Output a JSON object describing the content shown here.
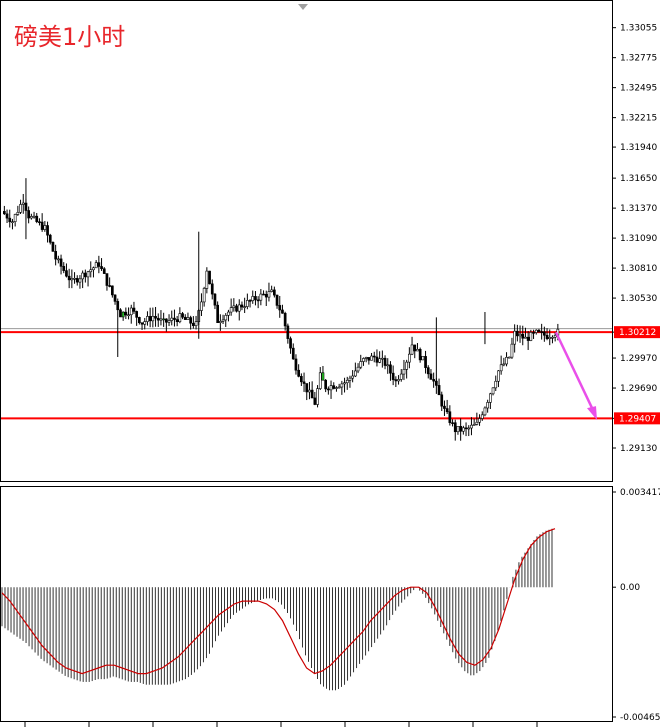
{
  "chart_data": [
    {
      "type": "candlestick",
      "title": "磅美1小时",
      "ylim": [
        1.2885,
        1.3322
      ],
      "y_ticks": [
        "1.33055",
        "1.32775",
        "1.32495",
        "1.32215",
        "1.31940",
        "1.31650",
        "1.31370",
        "1.31090",
        "1.30810",
        "1.30530",
        "1.30212",
        "1.29970",
        "1.29690",
        "1.29407",
        "1.29130"
      ],
      "horizontal_lines": [
        {
          "value": 1.30212,
          "label": "1.30212",
          "color": "#ff0000"
        },
        {
          "value": 1.29407,
          "label": "1.29407",
          "color": "#ff0000"
        }
      ],
      "current_price_line": 1.30245,
      "arrow": {
        "from": [
          1.3021
        ],
        "to": [
          1.2939
        ],
        "color": "#e94fe9"
      },
      "price_path": [
        [
          0,
          1.3134
        ],
        [
          4,
          1.3125
        ],
        [
          8,
          1.3145
        ],
        [
          10,
          1.313
        ],
        [
          16,
          1.3118
        ],
        [
          20,
          1.309
        ],
        [
          26,
          1.3068
        ],
        [
          32,
          1.3078
        ],
        [
          36,
          1.3085
        ],
        [
          40,
          1.3062
        ],
        [
          44,
          1.3038
        ],
        [
          48,
          1.3042
        ],
        [
          52,
          1.303
        ],
        [
          56,
          1.3036
        ],
        [
          60,
          1.303
        ],
        [
          66,
          1.3035
        ],
        [
          72,
          1.3028
        ],
        [
          74,
          1.305
        ],
        [
          76,
          1.308
        ],
        [
          78,
          1.3055
        ],
        [
          80,
          1.3032
        ],
        [
          84,
          1.304
        ],
        [
          88,
          1.3045
        ],
        [
          92,
          1.305
        ],
        [
          96,
          1.3055
        ],
        [
          100,
          1.3058
        ],
        [
          104,
          1.3038
        ],
        [
          108,
          1.2995
        ],
        [
          112,
          1.2972
        ],
        [
          116,
          1.2955
        ],
        [
          118,
          1.298
        ],
        [
          120,
          1.297
        ],
        [
          124,
          1.2972
        ],
        [
          128,
          1.2975
        ],
        [
          130,
          1.2982
        ],
        [
          134,
          1.2995
        ],
        [
          138,
          1.2998
        ],
        [
          142,
          1.2992
        ],
        [
          146,
          1.2975
        ],
        [
          150,
          1.2995
        ],
        [
          152,
          1.301
        ],
        [
          156,
          1.2995
        ],
        [
          160,
          1.2975
        ],
        [
          164,
          1.2948
        ],
        [
          168,
          1.293
        ],
        [
          172,
          1.293
        ],
        [
          176,
          1.2935
        ],
        [
          180,
          1.2958
        ],
        [
          184,
          1.2985
        ],
        [
          188,
          1.2998
        ],
        [
          190,
          1.302
        ],
        [
          194,
          1.3015
        ],
        [
          198,
          1.302
        ],
        [
          202,
          1.3018
        ],
        [
          205,
          1.3021
        ]
      ]
    },
    {
      "type": "bar",
      "ylim": [
        -0.004659,
        0.003417
      ],
      "y_ticks": [
        "0.003417",
        "0.00",
        "-0.004659"
      ],
      "histogram": [
        -0.0014,
        -0.0016,
        -0.0018,
        -0.002,
        -0.0023,
        -0.0026,
        -0.0028,
        -0.003,
        -0.0032,
        -0.0033,
        -0.0034,
        -0.0034,
        -0.0033,
        -0.0033,
        -0.0032,
        -0.0033,
        -0.0034,
        -0.0034,
        -0.0035,
        -0.0035,
        -0.0035,
        -0.0035,
        -0.0034,
        -0.0033,
        -0.0031,
        -0.0028,
        -0.0024,
        -0.0018,
        -0.0014,
        -0.001,
        -0.0008,
        -0.0006,
        -0.0005,
        -0.0004,
        -0.0004,
        -0.0006,
        -0.001,
        -0.0016,
        -0.0024,
        -0.003,
        -0.0035,
        -0.0037,
        -0.0037,
        -0.0035,
        -0.0031,
        -0.0027,
        -0.0023,
        -0.0019,
        -0.0015,
        -0.001,
        -0.0006,
        -0.0003,
        0.0,
        -0.0003,
        -0.0008,
        -0.0014,
        -0.002,
        -0.0026,
        -0.003,
        -0.0032,
        -0.003,
        -0.0026,
        -0.0018,
        -0.0008,
        0.0003,
        0.001,
        0.0014,
        0.0018,
        0.002,
        0.0021
      ],
      "signal_line": [
        -0.0002,
        -0.0005,
        -0.0009,
        -0.0013,
        -0.0017,
        -0.0021,
        -0.0024,
        -0.0027,
        -0.0029,
        -0.003,
        -0.0031,
        -0.003,
        -0.0029,
        -0.0028,
        -0.0028,
        -0.0029,
        -0.003,
        -0.0031,
        -0.0031,
        -0.003,
        -0.0029,
        -0.0027,
        -0.0025,
        -0.0022,
        -0.0019,
        -0.0016,
        -0.0013,
        -0.001,
        -0.0008,
        -0.0006,
        -0.0005,
        -0.0005,
        -0.0005,
        -0.0006,
        -0.0008,
        -0.0012,
        -0.0018,
        -0.0024,
        -0.0029,
        -0.0031,
        -0.003,
        -0.0028,
        -0.0025,
        -0.0022,
        -0.0019,
        -0.0016,
        -0.0012,
        -0.0009,
        -0.0006,
        -0.0003,
        -0.0001,
        0.0,
        0.0,
        -0.0002,
        -0.0007,
        -0.0013,
        -0.0019,
        -0.0024,
        -0.0027,
        -0.0028,
        -0.0026,
        -0.0022,
        -0.0015,
        -0.0006,
        0.0003,
        0.001,
        0.0015,
        0.0018,
        0.002,
        0.0021
      ]
    }
  ],
  "colors": {
    "bull": "#ffffff",
    "bear": "#000000",
    "special": "#2ad62a",
    "signal": "#cc0000",
    "grid": "#000000"
  }
}
